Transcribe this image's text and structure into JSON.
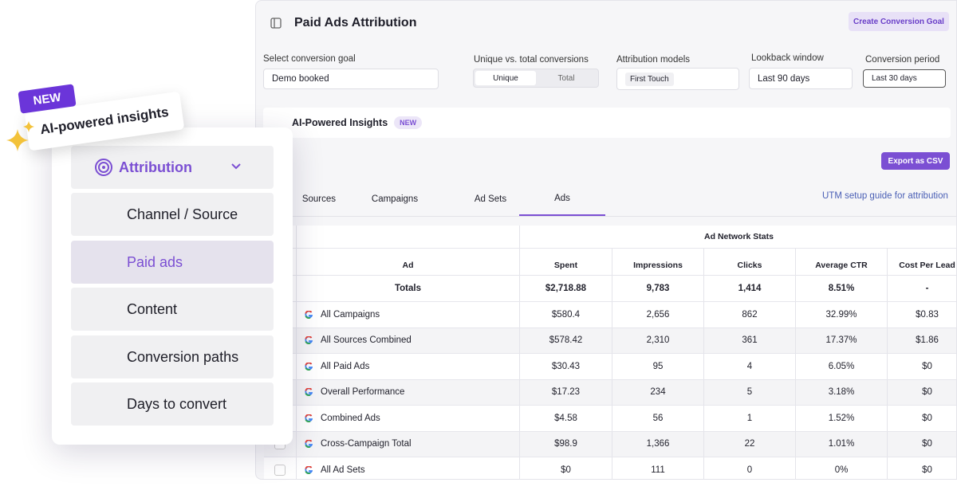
{
  "header": {
    "title": "Paid Ads Attribution",
    "button": "Create Conversion Goal"
  },
  "filters": {
    "goal": {
      "label": "Select conversion goal",
      "value": "Demo booked"
    },
    "conversions": {
      "label": "Unique vs. total conversions",
      "options": [
        "Unique",
        "Total"
      ]
    },
    "model": {
      "label": "Attribution models",
      "value": "First Touch"
    },
    "lookback": {
      "label": "Lookback window",
      "value": "Last 90 days"
    },
    "period": {
      "label": "Conversion period",
      "value": "Last 30 days"
    }
  },
  "insights": {
    "title": "AI-Powered Insights",
    "badge": "NEW"
  },
  "export": "Export as CSV",
  "tabs": [
    "Sources",
    "Campaigns",
    "Ad Sets",
    "Ads"
  ],
  "utm": "UTM setup guide for attribution",
  "table": {
    "group": "Ad Network Stats",
    "columns": [
      "Ad",
      "Spent",
      "Impressions",
      "Clicks",
      "Average CTR",
      "Cost Per Lead"
    ],
    "totals": [
      "Totals",
      "$2,718.88",
      "9,783",
      "1,414",
      "8.51%",
      "-"
    ],
    "rows": [
      [
        "All Campaigns",
        "$580.4",
        "2,656",
        "862",
        "32.99%",
        "$0.83"
      ],
      [
        "All Sources Combined",
        "$578.42",
        "2,310",
        "361",
        "17.37%",
        "$1.86"
      ],
      [
        "All Paid Ads",
        "$30.43",
        "95",
        "4",
        "6.05%",
        "$0"
      ],
      [
        "Overall Performance",
        "$17.23",
        "234",
        "5",
        "3.18%",
        "$0"
      ],
      [
        "Combined Ads",
        "$4.58",
        "56",
        "1",
        "1.52%",
        "$0"
      ],
      [
        "Cross-Campaign Total",
        "$98.9",
        "1,366",
        "22",
        "1.01%",
        "$0"
      ],
      [
        "All Ad Sets",
        "$0",
        "111",
        "0",
        "0%",
        "$0"
      ]
    ]
  },
  "overlay": {
    "badge": "NEW",
    "tagline": "AI-powered insights",
    "menu_title": "Attribution",
    "items": [
      "Channel / Source",
      "Paid ads",
      "Content",
      "Conversion paths",
      "Days to convert"
    ]
  }
}
